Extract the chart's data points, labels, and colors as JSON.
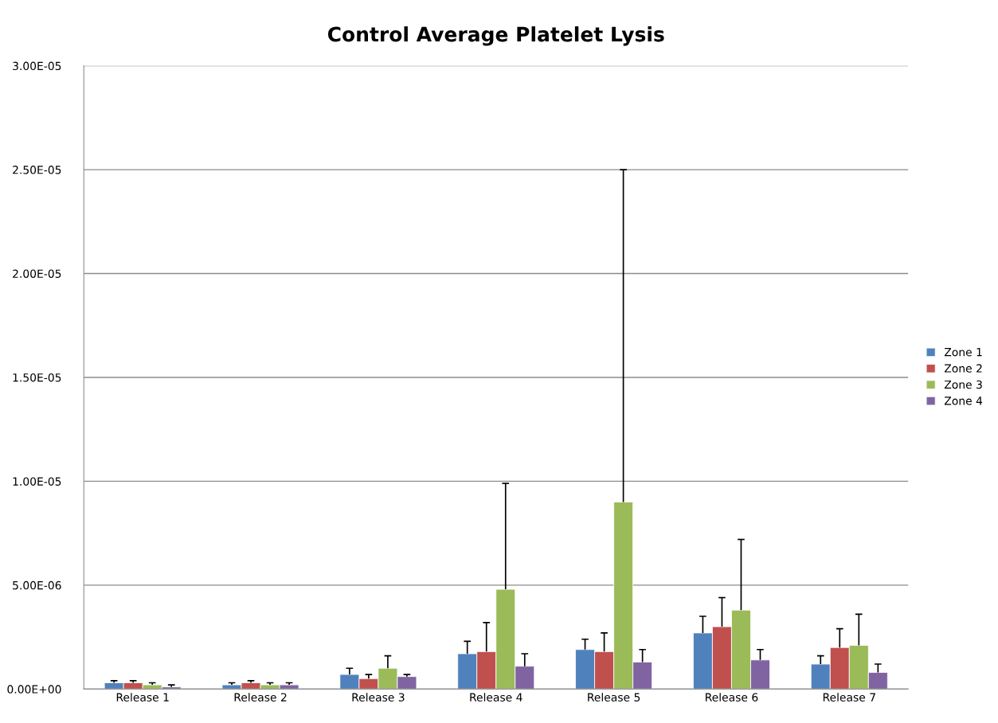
{
  "chart_data": {
    "type": "bar",
    "title": "Control Average Platelet Lysis",
    "categories": [
      "Release 1",
      "Release 2",
      "Release 3",
      "Release 4",
      "Release 5",
      "Release 6",
      "Release 7"
    ],
    "series": [
      {
        "name": "Zone 1",
        "color": "#4f81bd",
        "values": [
          3e-07,
          2e-07,
          7e-07,
          1.7e-06,
          1.9e-06,
          2.7e-06,
          1.2e-06
        ],
        "errors": [
          [
            3e-07,
            4e-07
          ],
          [
            2e-07,
            3e-07
          ],
          [
            7e-07,
            1e-06
          ],
          [
            1.7e-06,
            2.3e-06
          ],
          [
            1.9e-06,
            2.4e-06
          ],
          [
            2.7e-06,
            3.5e-06
          ],
          [
            1.2e-06,
            1.6e-06
          ]
        ]
      },
      {
        "name": "Zone 2",
        "color": "#c0504d",
        "values": [
          3e-07,
          3e-07,
          5e-07,
          1.8e-06,
          1.8e-06,
          3e-06,
          2e-06
        ],
        "errors": [
          [
            3e-07,
            4e-07
          ],
          [
            3e-07,
            4e-07
          ],
          [
            5e-07,
            7e-07
          ],
          [
            1.8e-06,
            3.2e-06
          ],
          [
            1.8e-06,
            2.7e-06
          ],
          [
            3e-06,
            4.4e-06
          ],
          [
            2e-06,
            2.9e-06
          ]
        ]
      },
      {
        "name": "Zone 3",
        "color": "#9bbb59",
        "values": [
          2e-07,
          2e-07,
          1e-06,
          4.8e-06,
          9e-06,
          3.8e-06,
          2.1e-06
        ],
        "errors": [
          [
            2e-07,
            3e-07
          ],
          [
            2e-07,
            3e-07
          ],
          [
            1e-06,
            1.6e-06
          ],
          [
            4.8e-06,
            9.9e-06
          ],
          [
            9e-06,
            2.5e-05
          ],
          [
            3.8e-06,
            7.2e-06
          ],
          [
            2.1e-06,
            3.6e-06
          ]
        ]
      },
      {
        "name": "Zone 4",
        "color": "#8064a2",
        "values": [
          1e-07,
          2e-07,
          6e-07,
          1.1e-06,
          1.3e-06,
          1.4e-06,
          8e-07
        ],
        "errors": [
          [
            1e-07,
            2e-07
          ],
          [
            2e-07,
            3e-07
          ],
          [
            6e-07,
            7e-07
          ],
          [
            1.1e-06,
            1.7e-06
          ],
          [
            1.3e-06,
            1.9e-06
          ],
          [
            1.4e-06,
            1.9e-06
          ],
          [
            8e-07,
            1.2e-06
          ]
        ]
      }
    ],
    "ylim": [
      0,
      3e-05
    ],
    "yticks": [
      {
        "value": 0,
        "label": "0.00E+00"
      },
      {
        "value": 5e-06,
        "label": "5.00E-06"
      },
      {
        "value": 1e-05,
        "label": "1.00E-05"
      },
      {
        "value": 1.5e-05,
        "label": "1.50E-05"
      },
      {
        "value": 2e-05,
        "label": "2.00E-05"
      },
      {
        "value": 2.5e-05,
        "label": "2.50E-05"
      },
      {
        "value": 3e-05,
        "label": "3.00E-05"
      }
    ],
    "grid": "y",
    "legend": "right"
  }
}
